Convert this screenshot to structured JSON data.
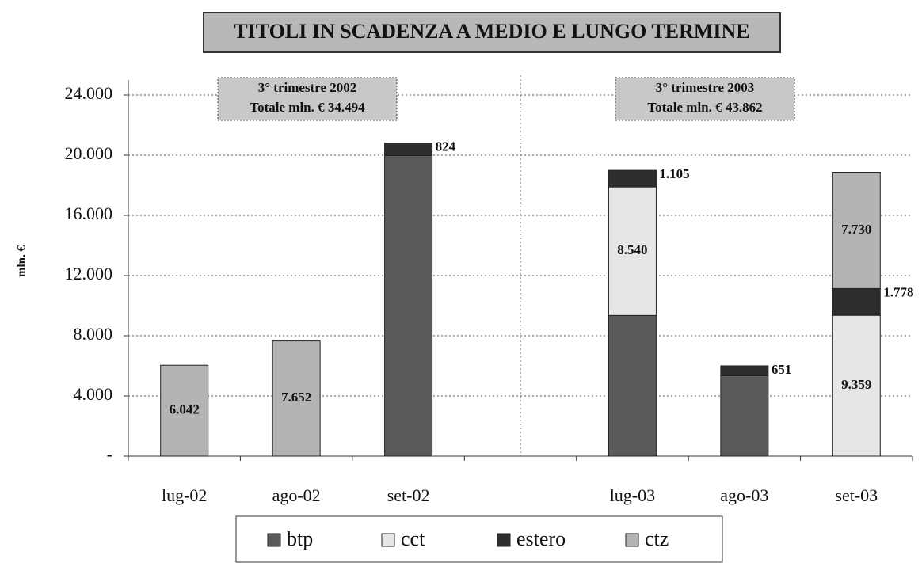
{
  "chart_data": {
    "type": "stacked_bar",
    "title": "TITOLI  IN SCADENZA A MEDIO E  LUNGO TERMINE",
    "y_label": "mln. €",
    "annotations": [
      {
        "lines": [
          "3° trimestre 2002",
          "Totale mln. € 34.494"
        ]
      },
      {
        "lines": [
          "3° trimestre 2003",
          "Totale mln. € 43.862"
        ]
      }
    ],
    "categories": [
      "lug-02",
      "ago-02",
      "set-02",
      null,
      "lug-03",
      "ago-03",
      "set-03"
    ],
    "series": [
      {
        "name": "btp",
        "color": "#5a5a5a",
        "values": [
          0,
          0,
          19976,
          0,
          9349,
          5350,
          0
        ],
        "value_labels": [
          null,
          null,
          null,
          null,
          null,
          null,
          null
        ]
      },
      {
        "name": "cct",
        "color": "#e6e6e6",
        "values": [
          0,
          0,
          0,
          0,
          8540,
          0,
          9359
        ],
        "value_labels": [
          null,
          null,
          null,
          null,
          "8.540",
          null,
          "9.359"
        ]
      },
      {
        "name": "estero",
        "color": "#2e2e2e",
        "values": [
          0,
          0,
          824,
          0,
          1105,
          651,
          1778
        ],
        "value_labels": [
          null,
          null,
          "824",
          null,
          "1.105",
          "651",
          "1.778"
        ]
      },
      {
        "name": "ctz",
        "color": "#b4b4b4",
        "values": [
          6042,
          7652,
          0,
          0,
          0,
          0,
          7730
        ],
        "value_labels": [
          "6.042",
          "7.652",
          null,
          null,
          null,
          null,
          "7.730"
        ]
      }
    ],
    "ylim": [
      0,
      25000
    ],
    "yticks": [
      {
        "value": 0,
        "label": "-"
      },
      {
        "value": 4000,
        "label": "4.000"
      },
      {
        "value": 8000,
        "label": "8.000"
      },
      {
        "value": 12000,
        "label": "12.000"
      },
      {
        "value": 16000,
        "label": "16.000"
      },
      {
        "value": 20000,
        "label": "20.000"
      },
      {
        "value": 24000,
        "label": "24.000"
      }
    ],
    "grid": true,
    "legend": "bottom"
  }
}
